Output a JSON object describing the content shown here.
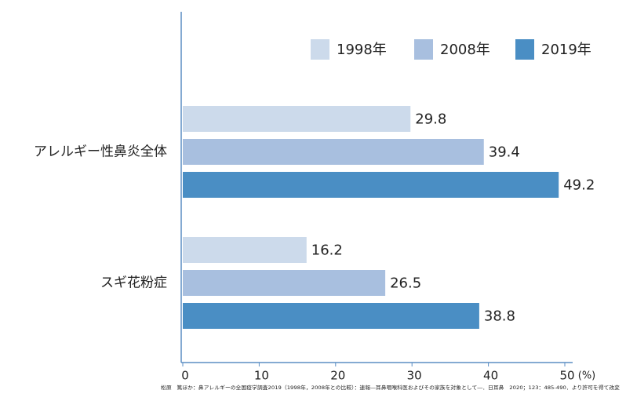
{
  "chart_data": {
    "type": "bar",
    "orientation": "horizontal",
    "categories": [
      "アレルギー性鼻炎全体",
      "スギ花粉症"
    ],
    "series": [
      {
        "name": "1998年",
        "color": "#ccdaeb",
        "values": [
          29.8,
          16.2
        ]
      },
      {
        "name": "2008年",
        "color": "#a8bfdf",
        "values": [
          39.4,
          26.5
        ]
      },
      {
        "name": "2019年",
        "color": "#4a8ec4",
        "values": [
          49.2,
          38.8
        ]
      }
    ],
    "xlim": [
      0,
      50
    ],
    "xticks": [
      0,
      10,
      20,
      30,
      40,
      50
    ],
    "x_unit": "(%)",
    "grid": false,
    "legend": "top-right",
    "source": "松原　篤ほか：鼻アレルギーの全国疫学調査2019（1998年，2008年との比較）：速報―耳鼻咽喉科医およびその家族を対象として―．日耳鼻　2020；123：485-490．より許可を得て改変"
  }
}
